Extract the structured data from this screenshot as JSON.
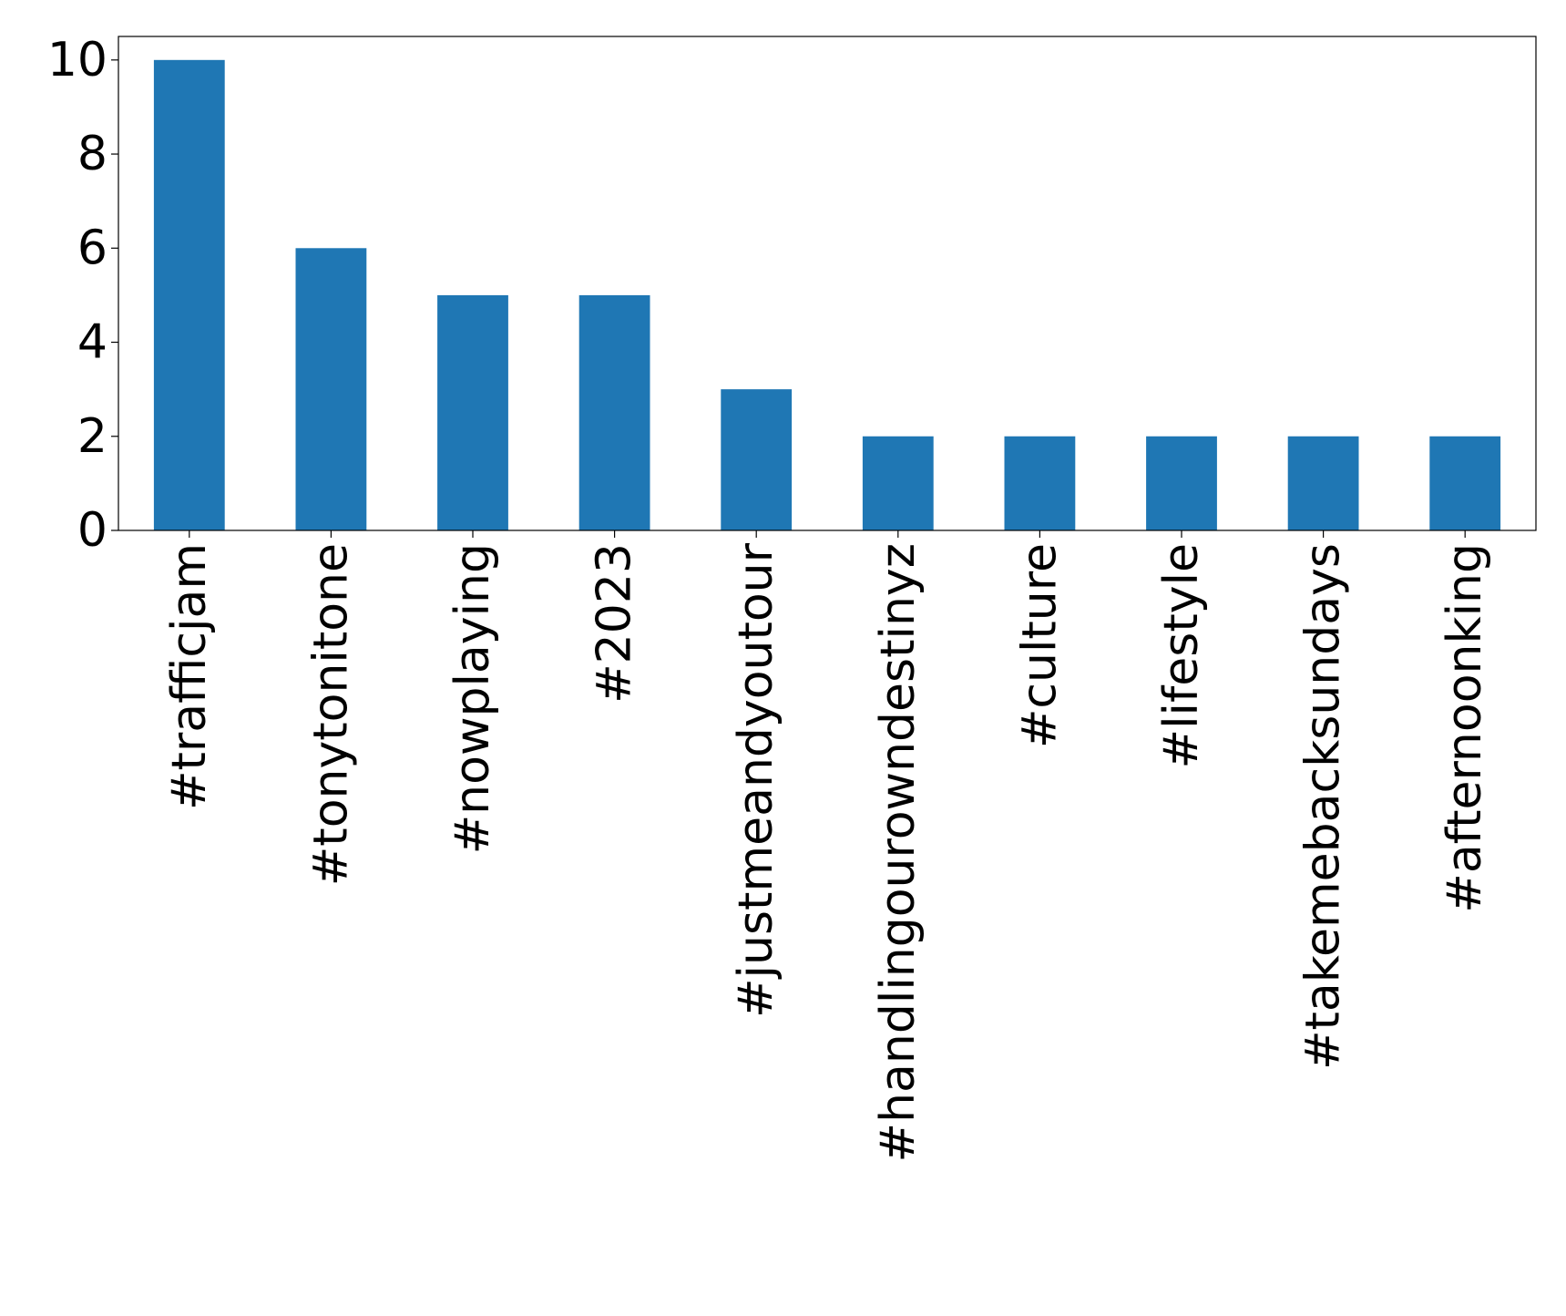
{
  "chart_data": {
    "type": "bar",
    "title": "",
    "xlabel": "",
    "ylabel": "",
    "categories": [
      "#trafficjam",
      "#tonytonitone",
      "#nowplaying",
      "#2023",
      "#justmeandyoutour",
      "#handlingourowndestinyz",
      "#culture",
      "#lifestyle",
      "#takemebacksundays",
      "#afternoonking"
    ],
    "values": [
      10,
      6,
      5,
      5,
      3,
      2,
      2,
      2,
      2,
      2
    ],
    "ylim": [
      0,
      10.5
    ],
    "yticks": [
      0,
      2,
      4,
      6,
      8,
      10
    ],
    "bar_color": "#1f77b4",
    "grid": false,
    "legend": false
  }
}
